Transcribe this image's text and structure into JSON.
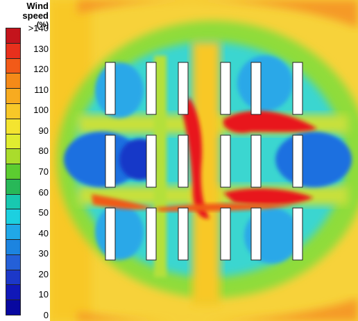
{
  "legend": {
    "title": "Wind speed",
    "unit": "(%)",
    "labels": [
      ">140",
      "130",
      "120",
      "110",
      "100",
      "90",
      "80",
      "70",
      "60",
      "50",
      "40",
      "30",
      "20",
      "10",
      "0"
    ],
    "colors": [
      "#c4141c",
      "#e8301c",
      "#f25a18",
      "#f58a18",
      "#f7ab20",
      "#f8c828",
      "#f4e430",
      "#e0ec30",
      "#aadc2c",
      "#5ccc30",
      "#28b858",
      "#18c8b0",
      "#1cd0e0",
      "#20a8e8",
      "#1c84e0",
      "#2460d8",
      "#1c38c8",
      "#1018b8",
      "#0808a0"
    ]
  },
  "colors": {
    "background": "#f7d23a",
    "outer": "#f59a28",
    "green": "#7fd83a",
    "cyan": "#3ad6d0",
    "blue": "#1f6fe0",
    "deepblue": "#1438c8",
    "red": "#e8141c",
    "building_fill": "#ffffff",
    "building_stroke": "#202020"
  }
}
